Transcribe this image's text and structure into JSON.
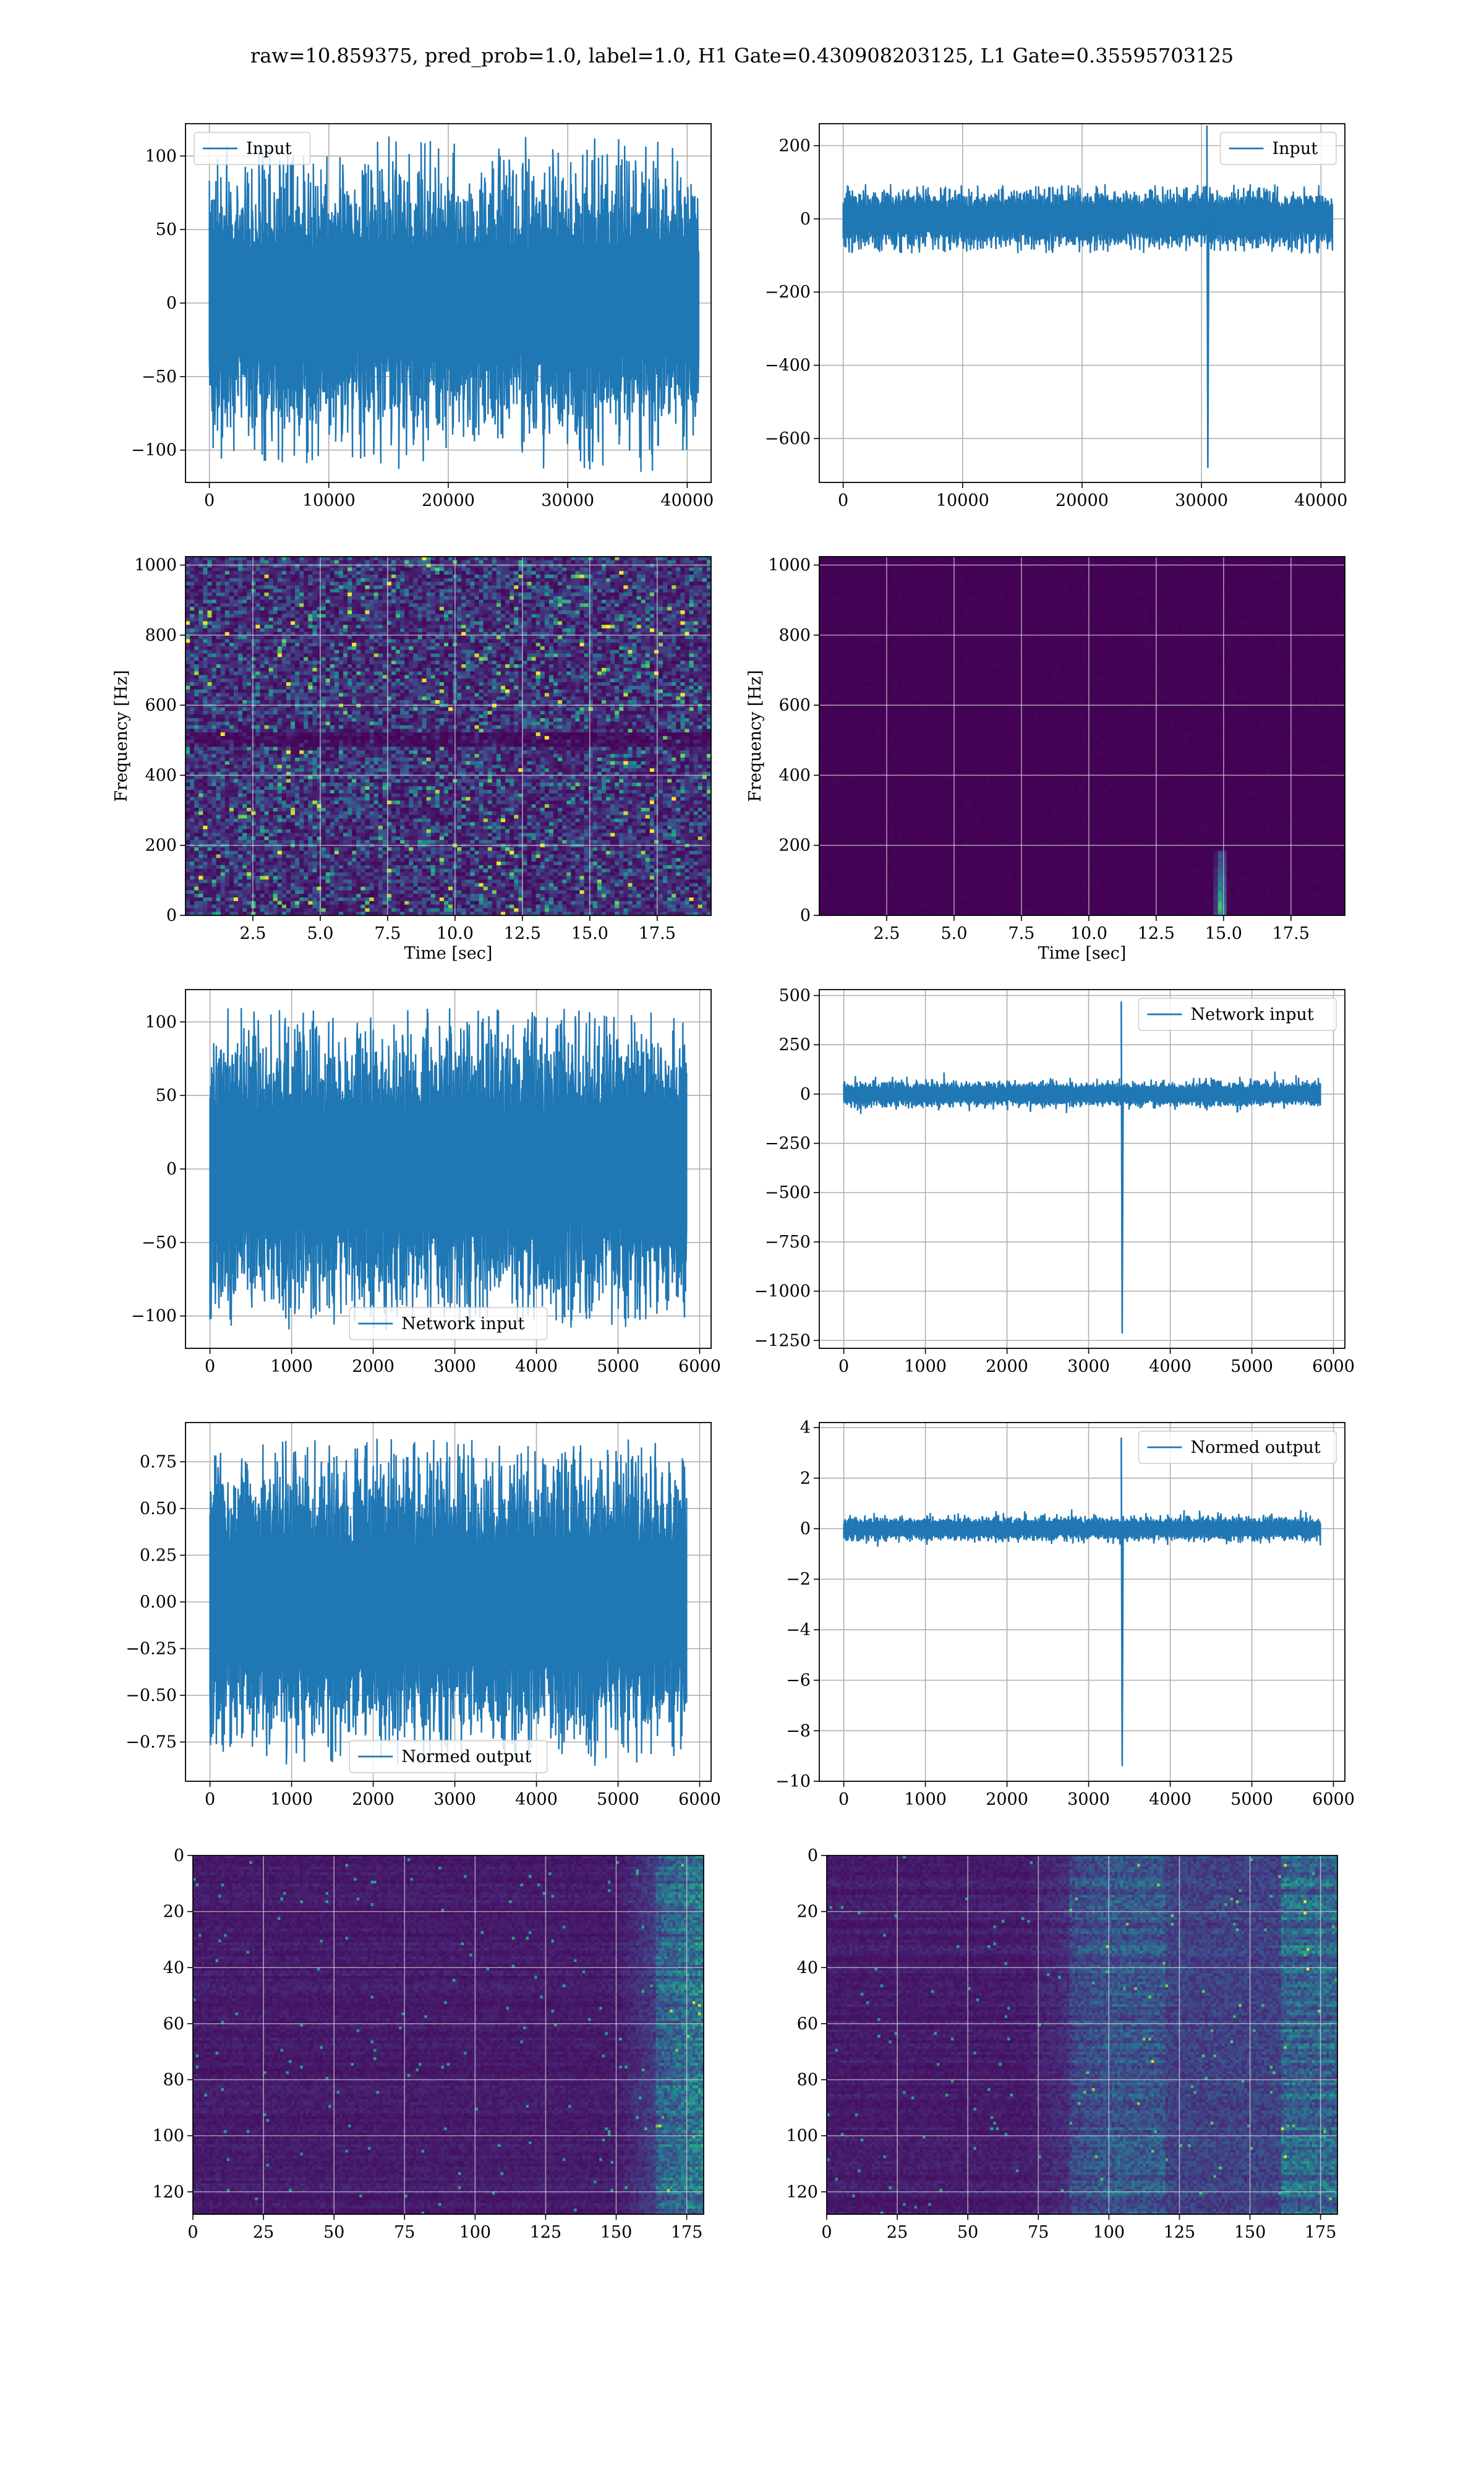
{
  "figure": {
    "suptitle": "raw=10.859375, pred_prob=1.0, label=1.0, H1 Gate=0.430908203125, L1 Gate=0.35595703125"
  },
  "chart_data": [
    {
      "id": "h1-input",
      "type": "line",
      "legend": "Input",
      "legend_loc": "top-left",
      "xlim": [
        -2000,
        42000
      ],
      "ylim": [
        -122,
        122
      ],
      "xticks": [
        0,
        10000,
        20000,
        30000,
        40000
      ],
      "xticklabels": [
        "0",
        "10000",
        "20000",
        "30000",
        "40000"
      ],
      "yticks": [
        100,
        50,
        0,
        -50,
        -100
      ],
      "yticklabels": [
        "100",
        "50",
        "0",
        "−50",
        "−100"
      ],
      "x_range": [
        0,
        40960
      ],
      "grid": true,
      "color": "#1f77b4",
      "series": {
        "n": 900,
        "sigma": 28,
        "peak": 115,
        "spikes": []
      }
    },
    {
      "id": "l1-input",
      "type": "line",
      "legend": "Input",
      "legend_loc": "top-right",
      "xlim": [
        -2000,
        42000
      ],
      "ylim": [
        -720,
        260
      ],
      "xticks": [
        0,
        10000,
        20000,
        30000,
        40000
      ],
      "xticklabels": [
        "0",
        "10000",
        "20000",
        "30000",
        "40000"
      ],
      "yticks": [
        200,
        0,
        -200,
        -400,
        -600
      ],
      "yticklabels": [
        "200",
        "0",
        "−200",
        "−400",
        "−600"
      ],
      "x_range": [
        0,
        40960
      ],
      "grid": true,
      "color": "#1f77b4",
      "series": {
        "n": 900,
        "sigma": 25,
        "peak": 95,
        "spikes": [
          {
            "x": 30450,
            "hi": 255,
            "lo": -680
          }
        ]
      }
    },
    {
      "id": "h1-spectrogram",
      "type": "heatmap",
      "colormap": "viridis",
      "xlim": [
        0,
        19.5
      ],
      "ylim": [
        0,
        1024
      ],
      "xticks": [
        2.5,
        5.0,
        7.5,
        10.0,
        12.5,
        15.0,
        17.5
      ],
      "xticklabels": [
        "2.5",
        "5.0",
        "7.5",
        "10.0",
        "12.5",
        "15.0",
        "17.5"
      ],
      "yticks": [
        0,
        200,
        400,
        600,
        800,
        1000
      ],
      "yticklabels": [
        "0",
        "200",
        "400",
        "600",
        "800",
        "1000"
      ],
      "xlabel": "Time [sec]",
      "ylabel": "Frequency [Hz]",
      "grid": true,
      "pattern": "noise",
      "band_hz": 500
    },
    {
      "id": "l1-spectrogram",
      "type": "heatmap",
      "colormap": "viridis",
      "xlim": [
        0,
        19.5
      ],
      "ylim": [
        0,
        1024
      ],
      "xticks": [
        2.5,
        5.0,
        7.5,
        10.0,
        12.5,
        15.0,
        17.5
      ],
      "xticklabels": [
        "2.5",
        "5.0",
        "7.5",
        "10.0",
        "12.5",
        "15.0",
        "17.5"
      ],
      "yticks": [
        0,
        200,
        400,
        600,
        800,
        1000
      ],
      "yticklabels": [
        "0",
        "200",
        "400",
        "600",
        "800",
        "1000"
      ],
      "xlabel": "Time [sec]",
      "ylabel": "Frequency [Hz]",
      "grid": true,
      "pattern": "glitch",
      "glitch_time": 14.9,
      "glitch_max_hz": 180
    },
    {
      "id": "h1-network-input",
      "type": "line",
      "legend": "Network input",
      "legend_loc": "bottom-center",
      "xlim": [
        -300,
        6140
      ],
      "ylim": [
        -122,
        122
      ],
      "xticks": [
        0,
        1000,
        2000,
        3000,
        4000,
        5000,
        6000
      ],
      "xticklabels": [
        "0",
        "1000",
        "2000",
        "3000",
        "4000",
        "5000",
        "6000"
      ],
      "yticks": [
        100,
        50,
        0,
        -50,
        -100
      ],
      "yticklabels": [
        "100",
        "50",
        "0",
        "−50",
        "−100"
      ],
      "x_range": [
        0,
        5840
      ],
      "grid": true,
      "color": "#1f77b4",
      "series": {
        "n": 900,
        "sigma": 30,
        "peak": 110,
        "spikes": []
      }
    },
    {
      "id": "l1-network-input",
      "type": "line",
      "legend": "Network input",
      "legend_loc": "top-right",
      "xlim": [
        -300,
        6140
      ],
      "ylim": [
        -1290,
        530
      ],
      "xticks": [
        0,
        1000,
        2000,
        3000,
        4000,
        5000,
        6000
      ],
      "xticklabels": [
        "0",
        "1000",
        "2000",
        "3000",
        "4000",
        "5000",
        "6000"
      ],
      "yticks": [
        500,
        250,
        0,
        -250,
        -500,
        -750,
        -1000,
        -1250
      ],
      "yticklabels": [
        "500",
        "250",
        "0",
        "−250",
        "−500",
        "−750",
        "−1000",
        "−1250"
      ],
      "x_range": [
        0,
        5840
      ],
      "grid": true,
      "color": "#1f77b4",
      "series": {
        "n": 900,
        "sigma": 20,
        "peak": 140,
        "spikes": [
          {
            "x": 3400,
            "hi": 470,
            "lo": -1215
          }
        ]
      }
    },
    {
      "id": "h1-normed-output",
      "type": "line",
      "legend": "Normed output",
      "legend_loc": "bottom-center",
      "xlim": [
        -300,
        6140
      ],
      "ylim": [
        -0.96,
        0.96
      ],
      "xticks": [
        0,
        1000,
        2000,
        3000,
        4000,
        5000,
        6000
      ],
      "xticklabels": [
        "0",
        "1000",
        "2000",
        "3000",
        "4000",
        "5000",
        "6000"
      ],
      "yticks": [
        0.75,
        0.5,
        0.25,
        0.0,
        -0.25,
        -0.5,
        -0.75
      ],
      "yticklabels": [
        "0.75",
        "0.50",
        "0.25",
        "0.00",
        "−0.25",
        "−0.50",
        "−0.75"
      ],
      "x_range": [
        0,
        5840
      ],
      "grid": true,
      "color": "#1f77b4",
      "series": {
        "n": 900,
        "sigma": 0.24,
        "peak": 0.88,
        "spikes": []
      }
    },
    {
      "id": "l1-normed-output",
      "type": "line",
      "legend": "Normed output",
      "legend_loc": "top-right",
      "xlim": [
        -300,
        6140
      ],
      "ylim": [
        -10,
        4.2
      ],
      "xticks": [
        0,
        1000,
        2000,
        3000,
        4000,
        5000,
        6000
      ],
      "xticklabels": [
        "0",
        "1000",
        "2000",
        "3000",
        "4000",
        "5000",
        "6000"
      ],
      "yticks": [
        4,
        2,
        0,
        -2,
        -4,
        -6,
        -8,
        -10
      ],
      "yticklabels": [
        "4",
        "2",
        "0",
        "−2",
        "−4",
        "−6",
        "−8",
        "−10"
      ],
      "x_range": [
        0,
        5840
      ],
      "grid": true,
      "color": "#1f77b4",
      "series": {
        "n": 900,
        "sigma": 0.15,
        "peak": 1.0,
        "spikes": [
          {
            "x": 3400,
            "hi": 3.6,
            "lo": -9.4
          }
        ]
      }
    },
    {
      "id": "h1-feature-map",
      "type": "heatmap",
      "colormap": "viridis",
      "xlim": [
        0,
        181
      ],
      "ylim": [
        0,
        128
      ],
      "y_inverted": true,
      "xticks": [
        0,
        25,
        50,
        75,
        100,
        125,
        150,
        175
      ],
      "xticklabels": [
        "0",
        "25",
        "50",
        "75",
        "100",
        "125",
        "150",
        "175"
      ],
      "yticks": [
        0,
        20,
        40,
        60,
        80,
        100,
        120
      ],
      "yticklabels": [
        "0",
        "20",
        "40",
        "60",
        "80",
        "100",
        "120"
      ],
      "grid": true,
      "pattern": "features-right"
    },
    {
      "id": "l1-feature-map",
      "type": "heatmap",
      "colormap": "viridis",
      "xlim": [
        0,
        181
      ],
      "ylim": [
        0,
        128
      ],
      "y_inverted": true,
      "xticks": [
        0,
        25,
        50,
        75,
        100,
        125,
        150,
        175
      ],
      "xticklabels": [
        "0",
        "25",
        "50",
        "75",
        "100",
        "125",
        "150",
        "175"
      ],
      "yticks": [
        0,
        20,
        40,
        60,
        80,
        100,
        120
      ],
      "yticklabels": [
        "0",
        "20",
        "40",
        "60",
        "80",
        "100",
        "120"
      ],
      "grid": true,
      "pattern": "features-mid-right"
    }
  ]
}
